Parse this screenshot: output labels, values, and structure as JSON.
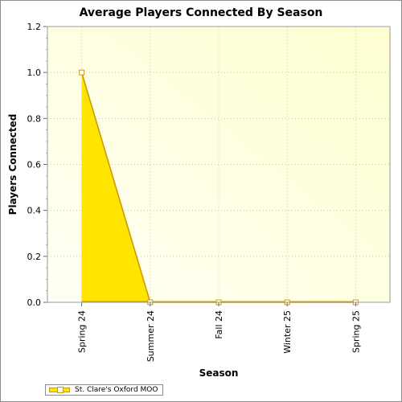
{
  "chart_data": {
    "type": "area",
    "title": "Average Players Connected By Season",
    "xlabel": "Season",
    "ylabel": "Players Connected",
    "categories": [
      "Spring 24",
      "Summer 24",
      "Fall 24",
      "Winter 25",
      "Spring 25"
    ],
    "series": [
      {
        "name": "St. Clare's Oxford MOO",
        "values": [
          1.0,
          0.0,
          0.0,
          0.0,
          0.0
        ]
      }
    ],
    "ylim": [
      0,
      1.2
    ],
    "yticks": [
      "0.0",
      "0.2",
      "0.4",
      "0.6",
      "0.8",
      "1.0",
      "1.2"
    ],
    "grid": true,
    "legend_position": "bottom-left",
    "colors": {
      "fill": "#ffe400",
      "line": "#c99a10",
      "plot_bg_light": "#fffff4",
      "plot_bg_dark": "#fefed0",
      "grid": "#c8c8b4"
    }
  }
}
